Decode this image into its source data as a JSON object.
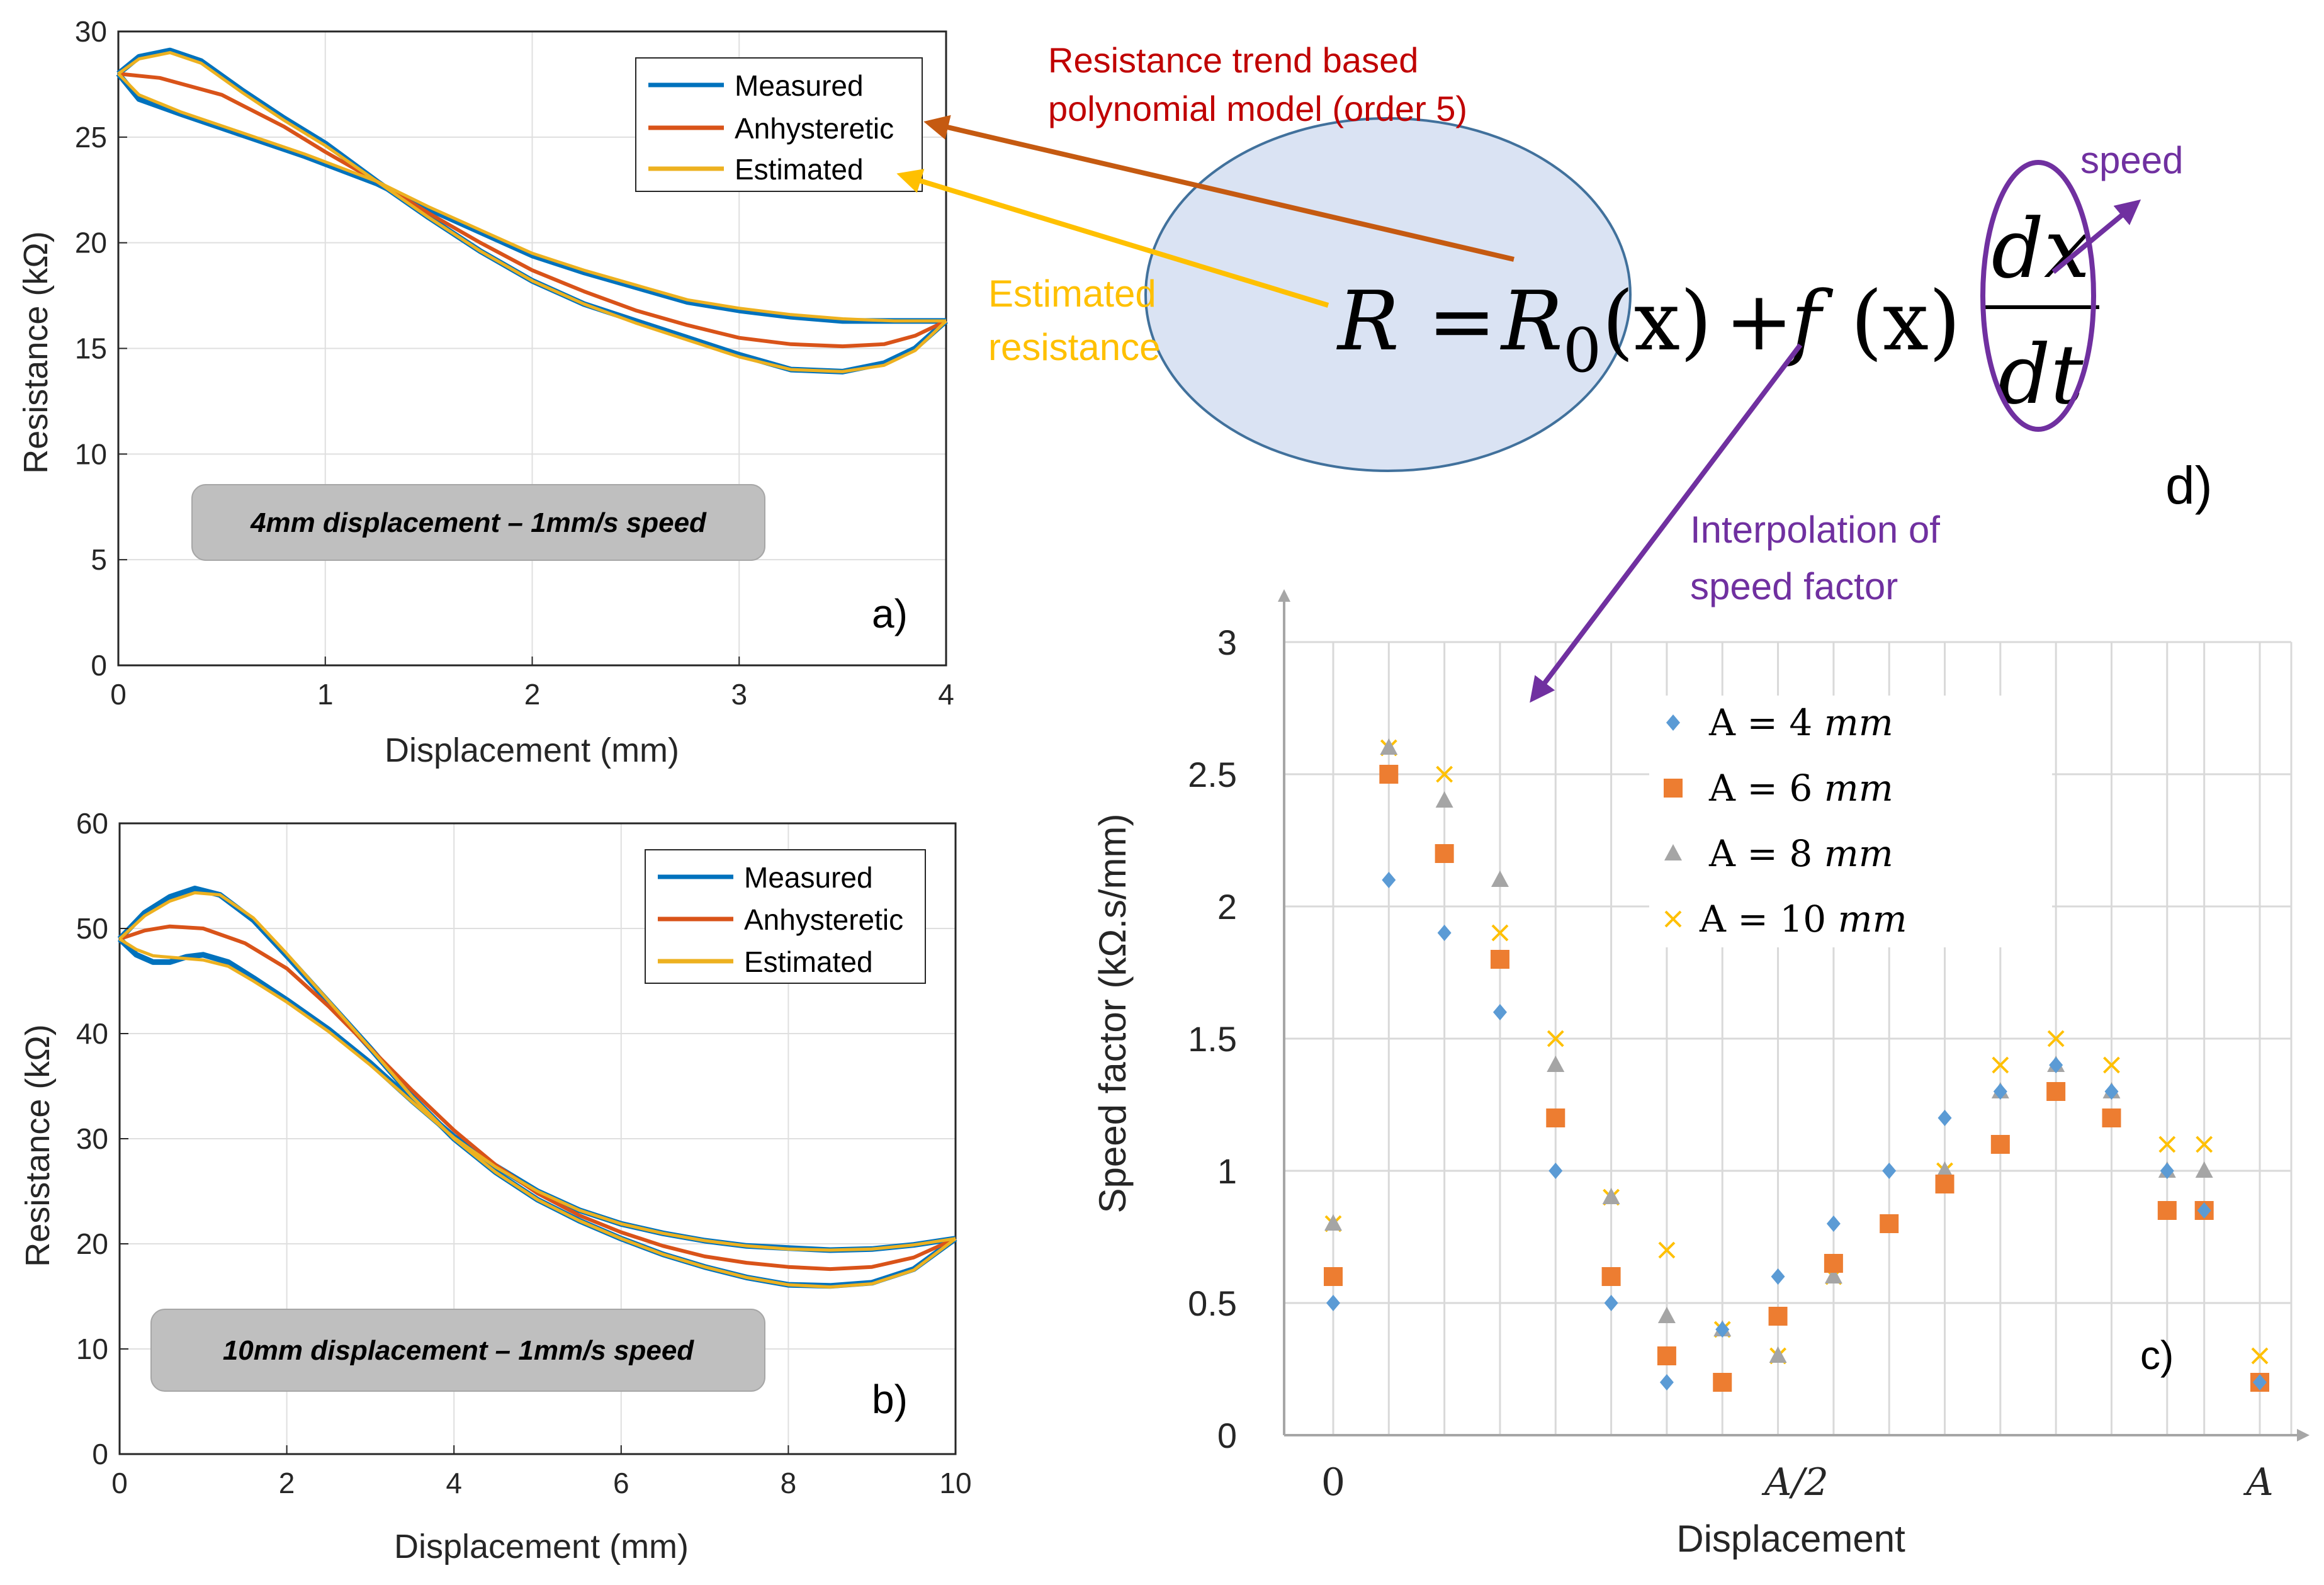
{
  "colors": {
    "measured": "#0072BD",
    "anhysteretic": "#D95319",
    "estimated": "#EDB120",
    "series4": "#5B9BD5",
    "series6": "#ED7D31",
    "series8": "#A5A5A5",
    "series10": "#FFC000",
    "annotation_red": "#C00000",
    "annotation_orange": "#C55A11",
    "annotation_yellow": "#FFC000",
    "annotation_purple": "#7030A0",
    "ellipse_fill": "#DAE3F3",
    "ellipse_stroke": "#41719C"
  },
  "annotations": {
    "resistance_trend_1": "Resistance trend based",
    "resistance_trend_2": "polynomial model (order 5)",
    "estimated_1": "Estimated",
    "estimated_2": "resistance",
    "speed": "speed",
    "interp_1": "Interpolation of",
    "interp_2": "speed factor",
    "panel_d": "d)"
  },
  "equation": {
    "R": "R",
    "equals": "=",
    "R0": "R",
    "sub0": "0",
    "x1": "(x)",
    "plus": "+",
    "f": "f",
    "x2": "(x)",
    "num": "dx",
    "den": "dt"
  },
  "chart_data": [
    {
      "type": "line",
      "panel": "a)",
      "xlabel": "Displacement (mm)",
      "ylabel": "Resistance (kΩ)",
      "xlim": [
        0,
        4
      ],
      "ylim": [
        0,
        30
      ],
      "xticks": [
        "0",
        "1",
        "2",
        "3",
        "4"
      ],
      "yticks": [
        "0",
        "5",
        "10",
        "15",
        "20",
        "25",
        "30"
      ],
      "grid": true,
      "legend": "top-right",
      "label_box": "4mm displacement – 1mm/s speed",
      "series": [
        {
          "name": "Measured",
          "upper": [
            [
              0,
              28
            ],
            [
              0.1,
              28.8
            ],
            [
              0.25,
              29.1
            ],
            [
              0.4,
              28.6
            ],
            [
              0.6,
              27.2
            ],
            [
              0.8,
              25.9
            ],
            [
              1.0,
              24.7
            ],
            [
              1.25,
              22.9
            ],
            [
              1.5,
              21.2
            ],
            [
              1.75,
              19.6
            ],
            [
              2.0,
              18.2
            ],
            [
              2.25,
              17.1
            ],
            [
              2.5,
              16.3
            ],
            [
              2.75,
              15.5
            ],
            [
              3.0,
              14.7
            ],
            [
              3.25,
              14.0
            ],
            [
              3.5,
              13.9
            ],
            [
              3.7,
              14.3
            ],
            [
              3.85,
              15.0
            ],
            [
              4.0,
              16.3
            ]
          ],
          "lower": [
            [
              0,
              28
            ],
            [
              0.1,
              26.8
            ],
            [
              0.3,
              26.1
            ],
            [
              0.6,
              25.1
            ],
            [
              0.9,
              24.1
            ],
            [
              1.25,
              22.8
            ],
            [
              1.5,
              21.6
            ],
            [
              1.75,
              20.5
            ],
            [
              2.0,
              19.4
            ],
            [
              2.25,
              18.6
            ],
            [
              2.5,
              17.9
            ],
            [
              2.75,
              17.2
            ],
            [
              3.0,
              16.8
            ],
            [
              3.25,
              16.5
            ],
            [
              3.5,
              16.3
            ],
            [
              3.75,
              16.3
            ],
            [
              4.0,
              16.3
            ]
          ]
        },
        {
          "name": "Anhysteretic",
          "values": [
            [
              0,
              28
            ],
            [
              0.2,
              27.8
            ],
            [
              0.5,
              27.0
            ],
            [
              0.8,
              25.5
            ],
            [
              1.0,
              24.3
            ],
            [
              1.25,
              22.9
            ],
            [
              1.5,
              21.4
            ],
            [
              1.75,
              20.0
            ],
            [
              2.0,
              18.7
            ],
            [
              2.25,
              17.7
            ],
            [
              2.5,
              16.8
            ],
            [
              2.75,
              16.1
            ],
            [
              3.0,
              15.5
            ],
            [
              3.25,
              15.2
            ],
            [
              3.5,
              15.1
            ],
            [
              3.7,
              15.2
            ],
            [
              3.85,
              15.6
            ],
            [
              4.0,
              16.3
            ]
          ]
        },
        {
          "name": "Estimated",
          "upper": [
            [
              0,
              28
            ],
            [
              0.1,
              28.7
            ],
            [
              0.25,
              29.0
            ],
            [
              0.4,
              28.5
            ],
            [
              0.6,
              27.1
            ],
            [
              0.8,
              25.8
            ],
            [
              1.0,
              24.6
            ],
            [
              1.25,
              22.9
            ],
            [
              1.5,
              21.2
            ],
            [
              1.75,
              19.6
            ],
            [
              2.0,
              18.2
            ],
            [
              2.25,
              17.1
            ],
            [
              2.5,
              16.2
            ],
            [
              2.75,
              15.4
            ],
            [
              3.0,
              14.6
            ],
            [
              3.25,
              14.0
            ],
            [
              3.5,
              13.9
            ],
            [
              3.7,
              14.2
            ],
            [
              3.85,
              14.9
            ],
            [
              4.0,
              16.3
            ]
          ],
          "lower": [
            [
              0,
              28
            ],
            [
              0.1,
              27.0
            ],
            [
              0.3,
              26.2
            ],
            [
              0.6,
              25.2
            ],
            [
              0.9,
              24.2
            ],
            [
              1.25,
              22.9
            ],
            [
              1.5,
              21.7
            ],
            [
              1.75,
              20.6
            ],
            [
              2.0,
              19.5
            ],
            [
              2.25,
              18.7
            ],
            [
              2.5,
              18.0
            ],
            [
              2.75,
              17.3
            ],
            [
              3.0,
              16.9
            ],
            [
              3.25,
              16.6
            ],
            [
              3.5,
              16.4
            ],
            [
              3.75,
              16.3
            ],
            [
              4.0,
              16.3
            ]
          ]
        }
      ]
    },
    {
      "type": "line",
      "panel": "b)",
      "xlabel": "Displacement (mm)",
      "ylabel": "Resistance (kΩ)",
      "xlim": [
        0,
        10
      ],
      "ylim": [
        0,
        60
      ],
      "xticks": [
        "0",
        "2",
        "4",
        "6",
        "8",
        "10"
      ],
      "yticks": [
        "0",
        "10",
        "20",
        "30",
        "40",
        "50",
        "60"
      ],
      "grid": true,
      "legend": "top-right",
      "label_box": "10mm displacement – 1mm/s speed",
      "series": [
        {
          "name": "Measured",
          "upper": [
            [
              0,
              49
            ],
            [
              0.3,
              51.5
            ],
            [
              0.6,
              53
            ],
            [
              0.9,
              53.8
            ],
            [
              1.2,
              53.2
            ],
            [
              1.6,
              50.8
            ],
            [
              2.0,
              47.4
            ],
            [
              2.5,
              43.0
            ],
            [
              3.0,
              38.6
            ],
            [
              3.5,
              34.0
            ],
            [
              4.0,
              30.0
            ],
            [
              4.5,
              26.8
            ],
            [
              5.0,
              24.2
            ],
            [
              5.5,
              22.2
            ],
            [
              6.0,
              20.5
            ],
            [
              6.5,
              19.0
            ],
            [
              7.0,
              17.8
            ],
            [
              7.5,
              16.8
            ],
            [
              8.0,
              16.1
            ],
            [
              8.5,
              16.0
            ],
            [
              9.0,
              16.3
            ],
            [
              9.5,
              17.6
            ],
            [
              10,
              20.5
            ]
          ],
          "lower": [
            [
              0,
              49
            ],
            [
              0.2,
              47.5
            ],
            [
              0.4,
              46.8
            ],
            [
              0.6,
              46.8
            ],
            [
              0.8,
              47.3
            ],
            [
              1.0,
              47.5
            ],
            [
              1.3,
              46.8
            ],
            [
              1.6,
              45.3
            ],
            [
              2.0,
              43.2
            ],
            [
              2.5,
              40.4
            ],
            [
              3.0,
              37.2
            ],
            [
              3.5,
              33.6
            ],
            [
              4.0,
              30.2
            ],
            [
              4.5,
              27.4
            ],
            [
              5.0,
              25.0
            ],
            [
              5.5,
              23.2
            ],
            [
              6.0,
              21.9
            ],
            [
              6.5,
              21.0
            ],
            [
              7.0,
              20.3
            ],
            [
              7.5,
              19.8
            ],
            [
              8.0,
              19.6
            ],
            [
              8.5,
              19.4
            ],
            [
              9.0,
              19.5
            ],
            [
              9.5,
              19.9
            ],
            [
              10,
              20.5
            ]
          ]
        },
        {
          "name": "Anhysteretic",
          "values": [
            [
              0,
              49
            ],
            [
              0.3,
              49.8
            ],
            [
              0.6,
              50.2
            ],
            [
              1.0,
              50.0
            ],
            [
              1.5,
              48.6
            ],
            [
              2.0,
              46.2
            ],
            [
              2.5,
              42.6
            ],
            [
              3.0,
              38.6
            ],
            [
              3.5,
              34.6
            ],
            [
              4.0,
              30.8
            ],
            [
              4.5,
              27.5
            ],
            [
              5.0,
              24.8
            ],
            [
              5.5,
              22.7
            ],
            [
              6.0,
              21.1
            ],
            [
              6.5,
              19.8
            ],
            [
              7.0,
              18.8
            ],
            [
              7.5,
              18.2
            ],
            [
              8.0,
              17.8
            ],
            [
              8.5,
              17.6
            ],
            [
              9.0,
              17.8
            ],
            [
              9.5,
              18.7
            ],
            [
              10,
              20.5
            ]
          ]
        },
        {
          "name": "Estimated",
          "upper": [
            [
              0,
              49
            ],
            [
              0.3,
              51.2
            ],
            [
              0.6,
              52.6
            ],
            [
              0.9,
              53.4
            ],
            [
              1.2,
              53.2
            ],
            [
              1.6,
              51.0
            ],
            [
              2.0,
              47.6
            ],
            [
              2.5,
              43.1
            ],
            [
              3.0,
              38.6
            ],
            [
              3.5,
              34.0
            ],
            [
              4.0,
              30.0
            ],
            [
              4.5,
              26.8
            ],
            [
              5.0,
              24.2
            ],
            [
              5.5,
              22.2
            ],
            [
              6.0,
              20.5
            ],
            [
              6.5,
              19.0
            ],
            [
              7.0,
              17.8
            ],
            [
              7.5,
              16.8
            ],
            [
              8.0,
              16.1
            ],
            [
              8.5,
              15.9
            ],
            [
              9.0,
              16.2
            ],
            [
              9.5,
              17.5
            ],
            [
              10,
              20.5
            ]
          ],
          "lower": [
            [
              0,
              49
            ],
            [
              0.2,
              48.0
            ],
            [
              0.4,
              47.4
            ],
            [
              0.7,
              47.2
            ],
            [
              1.0,
              47.0
            ],
            [
              1.3,
              46.4
            ],
            [
              1.6,
              45.0
            ],
            [
              2.0,
              43.0
            ],
            [
              2.5,
              40.2
            ],
            [
              3.0,
              37.0
            ],
            [
              3.5,
              33.5
            ],
            [
              4.0,
              30.1
            ],
            [
              4.5,
              27.3
            ],
            [
              5.0,
              25.0
            ],
            [
              5.5,
              23.2
            ],
            [
              6.0,
              21.9
            ],
            [
              6.5,
              21.0
            ],
            [
              7.0,
              20.3
            ],
            [
              7.5,
              19.8
            ],
            [
              8.0,
              19.5
            ],
            [
              8.5,
              19.4
            ],
            [
              9.0,
              19.5
            ],
            [
              9.5,
              19.9
            ],
            [
              10,
              20.5
            ]
          ]
        }
      ]
    },
    {
      "type": "scatter",
      "panel": "c)",
      "xlabel": "Displacement",
      "ylabel": "Speed factor (kΩ.s/mm)",
      "ylim": [
        0,
        3
      ],
      "xlim": [
        -0.05,
        1.05
      ],
      "xticks": [
        {
          "pos": 0,
          "label": "0"
        },
        {
          "pos": 0.5,
          "label": "A/2"
        },
        {
          "pos": 1,
          "label": "A"
        }
      ],
      "yticks": [
        "0",
        "0.5",
        "1",
        "1.5",
        "2",
        "2.5",
        "3"
      ],
      "grid": true,
      "legend": "top-center",
      "legend_labels": [
        {
          "pre": "A = 4 ",
          "unit": "mm"
        },
        {
          "pre": "A = 6 ",
          "unit": "mm"
        },
        {
          "pre": "A = 8 ",
          "unit": "mm"
        },
        {
          "pre": "A = 10 ",
          "unit": "mm"
        }
      ],
      "x": [
        0,
        0.06,
        0.12,
        0.18,
        0.24,
        0.3,
        0.36,
        0.42,
        0.48,
        0.54,
        0.6,
        0.66,
        0.72,
        0.78,
        0.84,
        0.9,
        0.94,
        1.0
      ],
      "series": [
        {
          "name": "A = 4 mm",
          "marker": "diamond",
          "values": [
            0.5,
            2.1,
            1.9,
            1.6,
            1.0,
            0.5,
            0.2,
            0.4,
            0.6,
            0.8,
            1.0,
            1.2,
            1.3,
            1.4,
            1.3,
            1.0,
            0.85,
            0.2
          ]
        },
        {
          "name": "A = 6 mm",
          "marker": "square",
          "values": [
            0.6,
            2.5,
            2.2,
            1.8,
            1.2,
            0.6,
            0.3,
            0.2,
            0.45,
            0.65,
            0.8,
            0.95,
            1.1,
            1.3,
            1.2,
            0.85,
            0.85,
            0.2
          ]
        },
        {
          "name": "A = 8 mm",
          "marker": "triangle",
          "values": [
            0.8,
            2.6,
            2.4,
            2.1,
            1.4,
            0.9,
            0.45,
            0.4,
            0.3,
            0.6,
            0.8,
            1.0,
            1.3,
            1.4,
            1.3,
            1.0,
            1.0,
            0.2
          ]
        },
        {
          "name": "A = 10 mm",
          "marker": "x",
          "values": [
            0.8,
            2.6,
            2.5,
            1.9,
            1.5,
            0.9,
            0.7,
            0.4,
            0.3,
            0.6,
            0.8,
            1.0,
            1.4,
            1.5,
            1.4,
            1.1,
            1.1,
            0.3
          ]
        }
      ]
    }
  ]
}
